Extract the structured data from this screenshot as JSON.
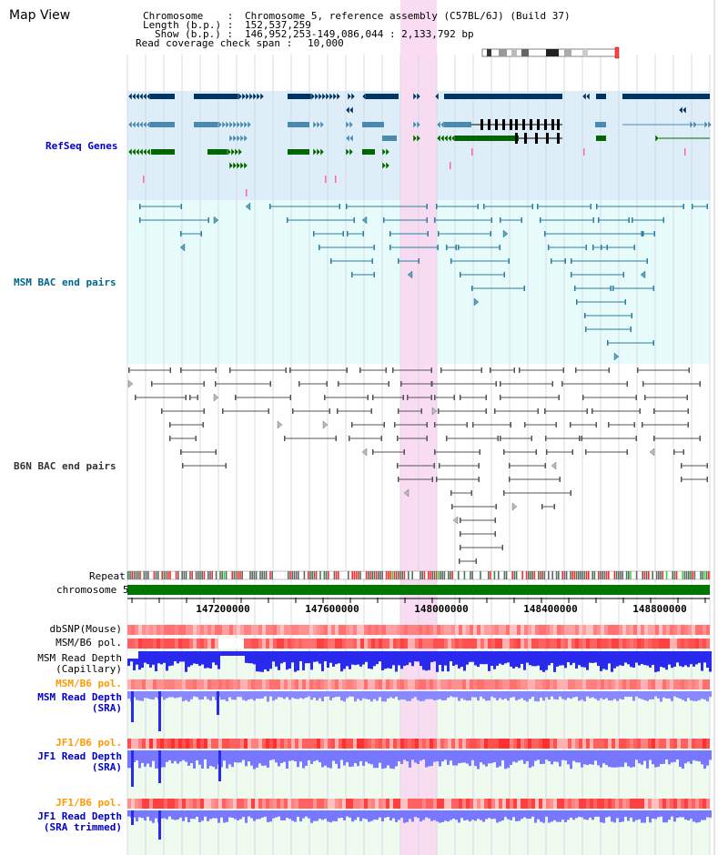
{
  "page": {
    "title": "Map View"
  },
  "header": {
    "chromosome_label": "Chromosome    :",
    "chromosome_value": "Chromosome 5, reference assembly (C57BL/6J) (Build 37)",
    "length_label": "Length (b.p.) :",
    "length_value": "152,537,259",
    "show_label": "Show (b.p.) :",
    "show_value": "146,952,253-149,086,044 : 2,133,792 bp",
    "coverage_label": "Read coverage check span :",
    "coverage_value": "10,000"
  },
  "tracks": {
    "refseq": "RefSeq Genes",
    "msm_bac": "MSM BAC end pairs",
    "b6n_bac": "B6N BAC end pairs",
    "repeat": "Repeat",
    "chromosome": "chromosome 5"
  },
  "ruler": {
    "ticks": [
      "147200000",
      "147600000",
      "148000000",
      "148400000",
      "148800000"
    ]
  },
  "side_tracks": [
    {
      "id": "dbsnp",
      "lines": [
        "dbSNP(Mouse)"
      ],
      "color": "#000000"
    },
    {
      "id": "msm_pol_1",
      "lines": [
        "MSM/B6 pol."
      ],
      "color": "#000000"
    },
    {
      "id": "msm_depth_cap",
      "lines": [
        "MSM Read Depth",
        "(Capillary)"
      ],
      "color": "#000000"
    },
    {
      "id": "msm_pol_2",
      "lines": [
        "MSM/B6 pol."
      ],
      "color": "#ff9900"
    },
    {
      "id": "msm_depth_sra",
      "lines": [
        "MSM Read Depth",
        "(SRA)"
      ],
      "color": "#0000cc"
    },
    {
      "id": "jf1_pol_1",
      "lines": [
        "JF1/B6 pol."
      ],
      "color": "#ff9900"
    },
    {
      "id": "jf1_depth_sra",
      "lines": [
        "JF1 Read Depth",
        "(SRA)"
      ],
      "color": "#0000cc"
    },
    {
      "id": "jf1_pol_2",
      "lines": [
        "JF1/B6 pol."
      ],
      "color": "#ff9900"
    },
    {
      "id": "jf1_depth_trim",
      "lines": [
        "JF1 Read Depth",
        "(SRA trimmed)"
      ],
      "color": "#0000cc"
    }
  ],
  "colors": {
    "refseq_bg": "#ddeef8",
    "refseq_label": "#0000cc",
    "msm_bg": "#e8fbfb",
    "msm_label": "#006688",
    "b6n_label": "#333333",
    "highlight": "#f8d8f0",
    "gene_dark": "#003366",
    "gene_mid": "#4a8ab0",
    "gene_green": "#006600",
    "chromosome_bar": "#007700",
    "snp_red": "#ff6666",
    "depth_blue": "#2222dd"
  }
}
